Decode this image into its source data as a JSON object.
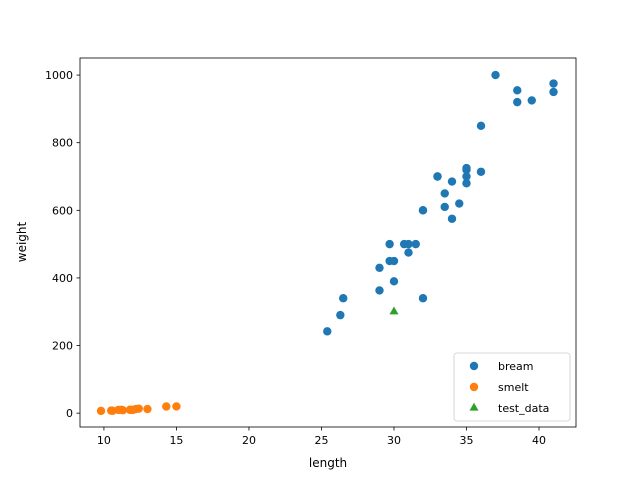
{
  "chart_data": {
    "type": "scatter",
    "title": "",
    "xlabel": "length",
    "ylabel": "weight",
    "xlim": [
      8.35,
      42.55
    ],
    "ylim": [
      -40.9,
      1050.5
    ],
    "xticks": [
      10,
      15,
      20,
      25,
      30,
      35,
      40
    ],
    "yticks": [
      0,
      200,
      400,
      600,
      800,
      1000
    ],
    "xtick_labels": [
      "10",
      "15",
      "20",
      "25",
      "30",
      "35",
      "40"
    ],
    "ytick_labels": [
      "0",
      "200",
      "400",
      "600",
      "800",
      "1000"
    ],
    "grid": false,
    "legend": {
      "position": "lower-right",
      "entries": [
        "bream",
        "smelt",
        "test_data"
      ]
    },
    "series": [
      {
        "name": "bream",
        "marker": "circle",
        "color": "#1f77b4",
        "points": [
          [
            25.4,
            242
          ],
          [
            26.3,
            290
          ],
          [
            26.5,
            340
          ],
          [
            29.0,
            363
          ],
          [
            29.0,
            430
          ],
          [
            29.7,
            450
          ],
          [
            29.7,
            500
          ],
          [
            30.0,
            390
          ],
          [
            30.0,
            450
          ],
          [
            30.7,
            500
          ],
          [
            31.0,
            475
          ],
          [
            31.0,
            500
          ],
          [
            31.5,
            500
          ],
          [
            32.0,
            340
          ],
          [
            32.0,
            600
          ],
          [
            32.0,
            600
          ],
          [
            33.0,
            700
          ],
          [
            33.0,
            700
          ],
          [
            33.5,
            610
          ],
          [
            33.5,
            650
          ],
          [
            34.0,
            575
          ],
          [
            34.0,
            685
          ],
          [
            34.5,
            620
          ],
          [
            35.0,
            680
          ],
          [
            35.0,
            700
          ],
          [
            35.0,
            725
          ],
          [
            35.0,
            720
          ],
          [
            36.0,
            714
          ],
          [
            36.0,
            850
          ],
          [
            37.0,
            1000
          ],
          [
            38.5,
            920
          ],
          [
            38.5,
            955
          ],
          [
            39.5,
            925
          ],
          [
            41.0,
            975
          ],
          [
            41.0,
            950
          ]
        ]
      },
      {
        "name": "smelt",
        "marker": "circle",
        "color": "#ff7f0e",
        "points": [
          [
            9.8,
            6.7
          ],
          [
            10.5,
            7.5
          ],
          [
            10.6,
            7.0
          ],
          [
            11.0,
            9.7
          ],
          [
            11.2,
            9.8
          ],
          [
            11.3,
            8.7
          ],
          [
            11.8,
            10.0
          ],
          [
            11.8,
            9.9
          ],
          [
            12.0,
            9.8
          ],
          [
            12.2,
            12.2
          ],
          [
            12.4,
            13.4
          ],
          [
            13.0,
            12.2
          ],
          [
            14.3,
            19.7
          ],
          [
            15.0,
            19.9
          ]
        ]
      },
      {
        "name": "test_data",
        "marker": "triangle",
        "color": "#2ca02c",
        "points": [
          [
            30,
            300
          ]
        ]
      }
    ]
  }
}
